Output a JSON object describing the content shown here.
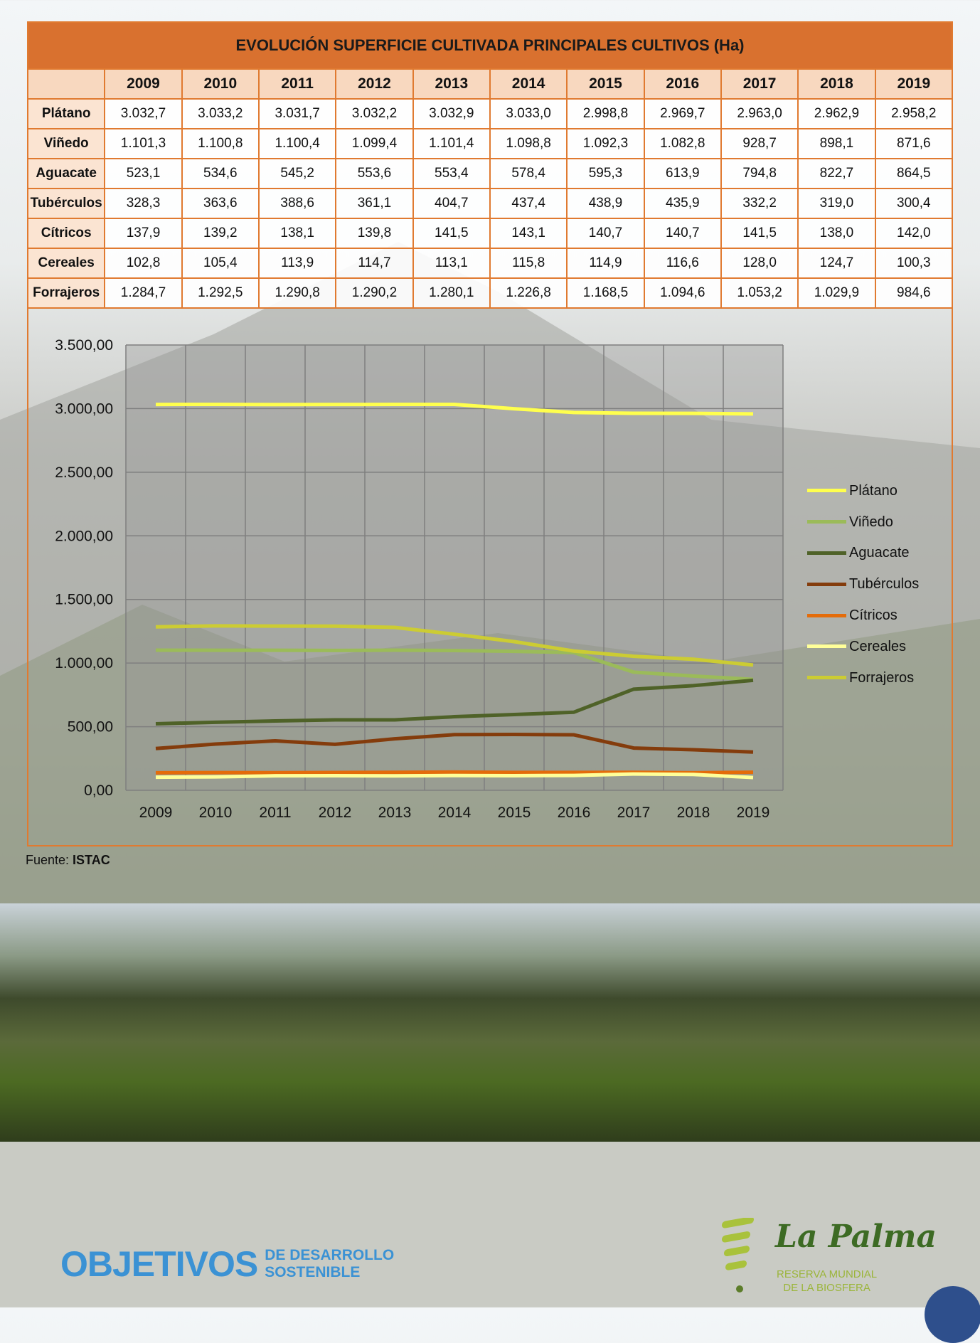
{
  "table": {
    "title": "EVOLUCIÓN SUPERFICIE CULTIVADA PRINCIPALES CULTIVOS (Ha)",
    "years": [
      "2009",
      "2010",
      "2011",
      "2012",
      "2013",
      "2014",
      "2015",
      "2016",
      "2017",
      "2018",
      "2019"
    ],
    "rows": [
      {
        "label": "Plátano",
        "values": [
          "3.032,7",
          "3.033,2",
          "3.031,7",
          "3.032,2",
          "3.032,9",
          "3.033,0",
          "2.998,8",
          "2.969,7",
          "2.963,0",
          "2.962,9",
          "2.958,2"
        ]
      },
      {
        "label": "Viñedo",
        "values": [
          "1.101,3",
          "1.100,8",
          "1.100,4",
          "1.099,4",
          "1.101,4",
          "1.098,8",
          "1.092,3",
          "1.082,8",
          "928,7",
          "898,1",
          "871,6"
        ]
      },
      {
        "label": "Aguacate",
        "values": [
          "523,1",
          "534,6",
          "545,2",
          "553,6",
          "553,4",
          "578,4",
          "595,3",
          "613,9",
          "794,8",
          "822,7",
          "864,5"
        ]
      },
      {
        "label": "Tubérculos",
        "values": [
          "328,3",
          "363,6",
          "388,6",
          "361,1",
          "404,7",
          "437,4",
          "438,9",
          "435,9",
          "332,2",
          "319,0",
          "300,4"
        ]
      },
      {
        "label": "Cítricos",
        "values": [
          "137,9",
          "139,2",
          "138,1",
          "139,8",
          "141,5",
          "143,1",
          "140,7",
          "140,7",
          "141,5",
          "138,0",
          "142,0"
        ]
      },
      {
        "label": "Cereales",
        "values": [
          "102,8",
          "105,4",
          "113,9",
          "114,7",
          "113,1",
          "115,8",
          "114,9",
          "116,6",
          "128,0",
          "124,7",
          "100,3"
        ]
      },
      {
        "label": "Forrajeros",
        "values": [
          "1.284,7",
          "1.292,5",
          "1.290,8",
          "1.290,2",
          "1.280,1",
          "1.226,8",
          "1.168,5",
          "1.094,6",
          "1.053,2",
          "1.029,9",
          "984,6"
        ]
      }
    ]
  },
  "chart_data": {
    "type": "line",
    "x": [
      "2009",
      "2010",
      "2011",
      "2012",
      "2013",
      "2014",
      "2015",
      "2016",
      "2017",
      "2018",
      "2019"
    ],
    "ylim": [
      0,
      3500
    ],
    "yticks": [
      0,
      500,
      1000,
      1500,
      2000,
      2500,
      3000,
      3500
    ],
    "ytick_labels": [
      "0,00",
      "500,00",
      "1.000,00",
      "1.500,00",
      "2.000,00",
      "2.500,00",
      "3.000,00",
      "3.500,00"
    ],
    "grid": true,
    "legend_position": "right",
    "series": [
      {
        "name": "Plátano",
        "color": "#ffff4d",
        "values": [
          3032.7,
          3033.2,
          3031.7,
          3032.2,
          3032.9,
          3033.0,
          2998.8,
          2969.7,
          2963.0,
          2962.9,
          2958.2
        ]
      },
      {
        "name": "Viñedo",
        "color": "#9bbb59",
        "values": [
          1101.3,
          1100.8,
          1100.4,
          1099.4,
          1101.4,
          1098.8,
          1092.3,
          1082.8,
          928.7,
          898.1,
          871.6
        ]
      },
      {
        "name": "Aguacate",
        "color": "#4f6228",
        "values": [
          523.1,
          534.6,
          545.2,
          553.6,
          553.4,
          578.4,
          595.3,
          613.9,
          794.8,
          822.7,
          864.5
        ]
      },
      {
        "name": "Tubérculos",
        "color": "#843c0c",
        "values": [
          328.3,
          363.6,
          388.6,
          361.1,
          404.7,
          437.4,
          438.9,
          435.9,
          332.2,
          319.0,
          300.4
        ]
      },
      {
        "name": "Cítricos",
        "color": "#e46c0a",
        "values": [
          137.9,
          139.2,
          138.1,
          139.8,
          141.5,
          143.1,
          140.7,
          140.7,
          141.5,
          138.0,
          142.0
        ]
      },
      {
        "name": "Cereales",
        "color": "#ffff99",
        "values": [
          102.8,
          105.4,
          113.9,
          114.7,
          113.1,
          115.8,
          114.9,
          116.6,
          128.0,
          124.7,
          100.3
        ]
      },
      {
        "name": "Forrajeros",
        "color": "#cccc33",
        "values": [
          1284.7,
          1292.5,
          1290.8,
          1290.2,
          1280.1,
          1226.8,
          1168.5,
          1094.6,
          1053.2,
          1029.9,
          984.6
        ]
      }
    ]
  },
  "source": {
    "prefix": "Fuente: ",
    "name": "ISTAC"
  },
  "footer": {
    "sdg_big": "OBJETIVOS",
    "sdg_line1": "DE DESARROLLO",
    "sdg_line2": "SOSTENIBLE",
    "lapalma_name": "La Palma",
    "lapalma_sub1": "RESERVA MUNDIAL",
    "lapalma_sub2": "DE LA BIOSFERA"
  }
}
